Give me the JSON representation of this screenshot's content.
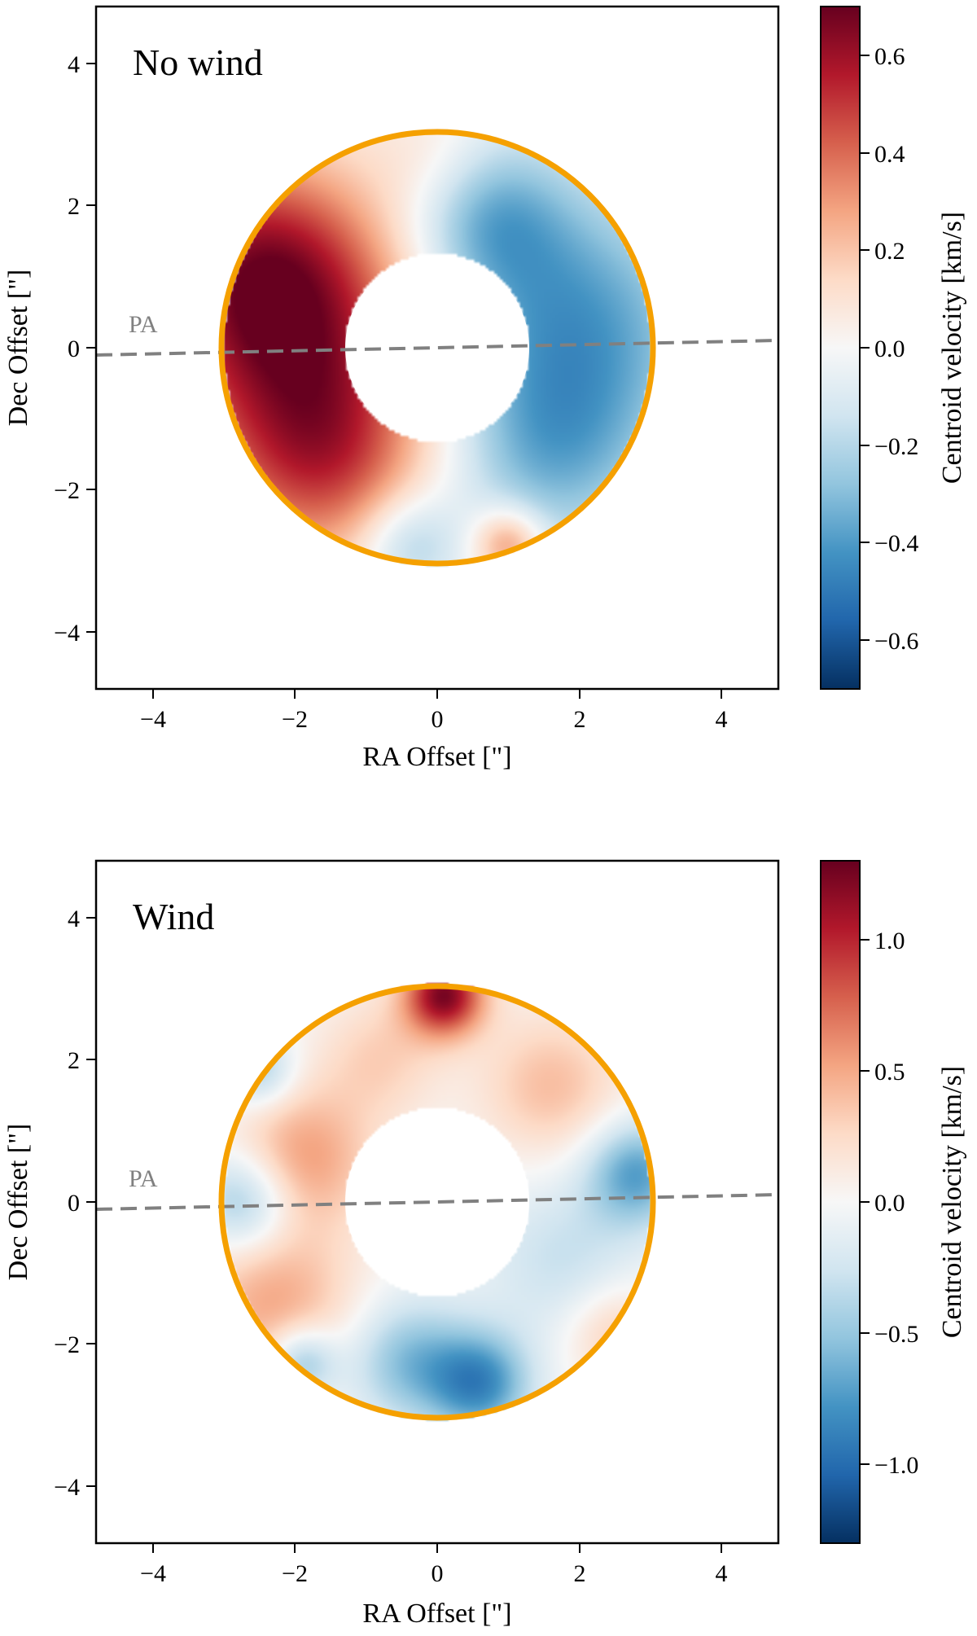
{
  "chart_data": [
    {
      "type": "heatmap",
      "title": "No wind",
      "xlabel": "RA Offset [\"]",
      "ylabel": "Dec Offset [\"]",
      "xlim": [
        -4.8,
        4.8
      ],
      "ylim": [
        -4.7,
        4.7
      ],
      "xticks": [
        -4,
        -2,
        0,
        2,
        4
      ],
      "yticks": [
        -4,
        -2,
        0,
        2,
        4
      ],
      "xtick_labels": [
        "−4",
        "−2",
        "0",
        "2",
        "4"
      ],
      "ytick_labels": [
        "−4",
        "−2",
        "0",
        "2",
        "4"
      ],
      "ring_radius": 3.0,
      "inner_mask_radius": 1.3,
      "ring_color": "#f5a000",
      "pa_label": "PA",
      "pa_line": {
        "x": [
          -4.8,
          4.8
        ],
        "y": [
          -0.1,
          0.1
        ],
        "color": "#808080"
      },
      "colorbar": {
        "label": "Centroid velocity [km/s]",
        "cmap": "RdBu_r",
        "vmin": -0.7,
        "vmax": 0.7,
        "ticks": [
          -0.6,
          -0.4,
          -0.2,
          0.0,
          0.2,
          0.4,
          0.6
        ],
        "tick_labels": [
          "−0.6",
          "−0.4",
          "−0.2",
          "0.0",
          "0.2",
          "0.4",
          "0.6"
        ]
      },
      "field_components": [
        {
          "x": -2.0,
          "y": 0.2,
          "amp": 0.55,
          "sigma": 1.4
        },
        {
          "x": -1.6,
          "y": -1.6,
          "amp": 0.35,
          "sigma": 1.0
        },
        {
          "x": -2.6,
          "y": 1.2,
          "amp": 0.3,
          "sigma": 1.0
        },
        {
          "x": 1.9,
          "y": 0.3,
          "amp": -0.4,
          "sigma": 1.3
        },
        {
          "x": 0.7,
          "y": 1.8,
          "amp": -0.3,
          "sigma": 0.8
        },
        {
          "x": 1.6,
          "y": -1.5,
          "amp": -0.25,
          "sigma": 1.0
        },
        {
          "x": 0.0,
          "y": 2.6,
          "amp": 0.1,
          "sigma": 0.6
        },
        {
          "x": -0.4,
          "y": -2.7,
          "amp": -0.25,
          "sigma": 0.5
        },
        {
          "x": 1.0,
          "y": -2.7,
          "amp": 0.35,
          "sigma": 0.35
        }
      ]
    },
    {
      "type": "heatmap",
      "title": "Wind",
      "xlabel": "RA Offset [\"]",
      "ylabel": "Dec Offset [\"]",
      "xlim": [
        -4.8,
        4.8
      ],
      "ylim": [
        -4.7,
        4.7
      ],
      "xticks": [
        -4,
        -2,
        0,
        2,
        4
      ],
      "yticks": [
        -4,
        -2,
        0,
        2,
        4
      ],
      "xtick_labels": [
        "−4",
        "−2",
        "0",
        "2",
        "4"
      ],
      "ytick_labels": [
        "−4",
        "−2",
        "0",
        "2",
        "4"
      ],
      "ring_radius": 3.0,
      "inner_mask_radius": 1.3,
      "ring_color": "#f5a000",
      "pa_label": "PA",
      "pa_line": {
        "x": [
          -4.8,
          4.8
        ],
        "y": [
          -0.1,
          0.1
        ],
        "color": "#808080"
      },
      "colorbar": {
        "label": "Centroid velocity [km/s]",
        "cmap": "RdBu_r",
        "vmin": -1.3,
        "vmax": 1.3,
        "ticks": [
          -1.0,
          -0.5,
          0.0,
          0.5,
          1.0
        ],
        "tick_labels": [
          "−1.0",
          "−0.5",
          "0.0",
          "0.5",
          "1.0"
        ]
      },
      "field_components": [
        {
          "x": 0.1,
          "y": 2.85,
          "amp": 1.2,
          "sigma": 0.4
        },
        {
          "x": -1.9,
          "y": 0.6,
          "amp": 0.55,
          "sigma": 0.7
        },
        {
          "x": -2.3,
          "y": -1.4,
          "amp": 0.5,
          "sigma": 0.8
        },
        {
          "x": 1.6,
          "y": 1.6,
          "amp": 0.4,
          "sigma": 0.7
        },
        {
          "x": -0.8,
          "y": 2.0,
          "amp": 0.3,
          "sigma": 0.6
        },
        {
          "x": -2.7,
          "y": 0.0,
          "amp": -0.6,
          "sigma": 0.5
        },
        {
          "x": 2.8,
          "y": 0.4,
          "amp": -0.7,
          "sigma": 0.5
        },
        {
          "x": 0.6,
          "y": -2.5,
          "amp": -0.8,
          "sigma": 0.5
        },
        {
          "x": -0.4,
          "y": -2.2,
          "amp": -0.55,
          "sigma": 0.6
        },
        {
          "x": -1.9,
          "y": -2.2,
          "amp": -0.6,
          "sigma": 0.35
        },
        {
          "x": 1.8,
          "y": -0.8,
          "amp": -0.3,
          "sigma": 0.8
        },
        {
          "x": 2.5,
          "y": -1.8,
          "amp": 0.35,
          "sigma": 0.5
        },
        {
          "x": -2.5,
          "y": 1.8,
          "amp": -0.45,
          "sigma": 0.35
        }
      ]
    }
  ]
}
